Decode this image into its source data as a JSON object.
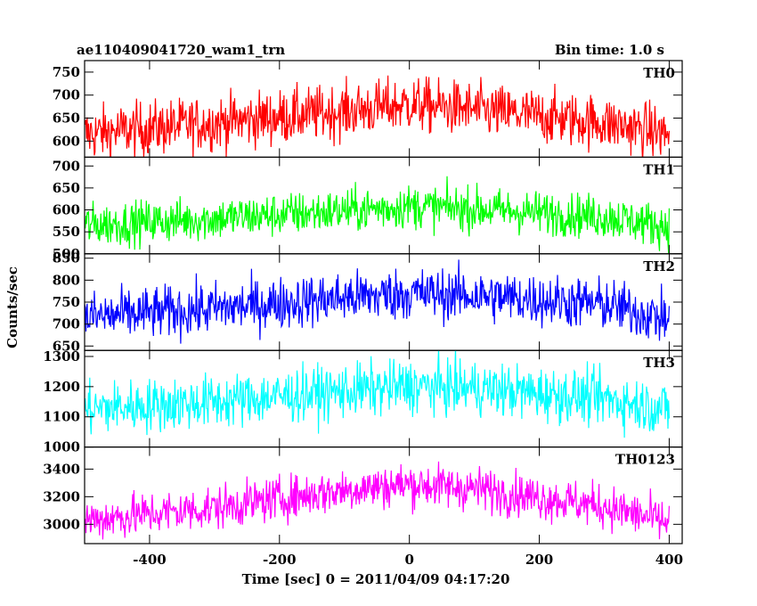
{
  "chart_data": {
    "type": "line",
    "title": "ae110409041720_wam1_trn",
    "bin_time": "Bin time: 1.0 s",
    "xlabel": "Time [sec] 0 = 2011/04/09 04:17:20",
    "ylabel": "Counts/sec",
    "xlim": [
      -500,
      420
    ],
    "x_ticks": [
      -400,
      -200,
      0,
      200,
      400
    ],
    "series": [
      {
        "name": "TH0",
        "color": "#ff0000",
        "ylim": [
          565,
          775
        ],
        "yticks": [
          600,
          650,
          700,
          750
        ],
        "profile": {
          "x": [
            -500,
            -300,
            -100,
            0,
            100,
            300,
            400
          ],
          "y": [
            615,
            640,
            665,
            680,
            668,
            640,
            615
          ]
        },
        "noise": 30
      },
      {
        "name": "TH1",
        "color": "#00ff00",
        "ylim": [
          500,
          720
        ],
        "yticks": [
          500,
          550,
          600,
          650,
          700
        ],
        "profile": {
          "x": [
            -500,
            -300,
            -100,
            0,
            100,
            300,
            400
          ],
          "y": [
            565,
            580,
            598,
            608,
            602,
            585,
            562
          ]
        },
        "noise": 25
      },
      {
        "name": "TH2",
        "color": "#0000ff",
        "ylim": [
          640,
          860
        ],
        "yticks": [
          650,
          700,
          750,
          800,
          850
        ],
        "profile": {
          "x": [
            -500,
            -300,
            -100,
            0,
            100,
            300,
            400
          ],
          "y": [
            715,
            735,
            760,
            770,
            765,
            745,
            710
          ]
        },
        "noise": 30
      },
      {
        "name": "TH3",
        "color": "#00ffff",
        "ylim": [
          1000,
          1320
        ],
        "yticks": [
          1000,
          1100,
          1200,
          1300
        ],
        "profile": {
          "x": [
            -500,
            -300,
            -100,
            0,
            100,
            300,
            400
          ],
          "y": [
            1125,
            1150,
            1185,
            1200,
            1195,
            1160,
            1125
          ]
        },
        "noise": 45
      },
      {
        "name": "TH0123",
        "color": "#ff00ff",
        "ylim": [
          2860,
          3560
        ],
        "yticks": [
          3000,
          3200,
          3400
        ],
        "profile": {
          "x": [
            -500,
            -300,
            -100,
            0,
            100,
            300,
            400
          ],
          "y": [
            3030,
            3120,
            3250,
            3290,
            3260,
            3130,
            3010
          ]
        },
        "noise": 80
      }
    ]
  }
}
